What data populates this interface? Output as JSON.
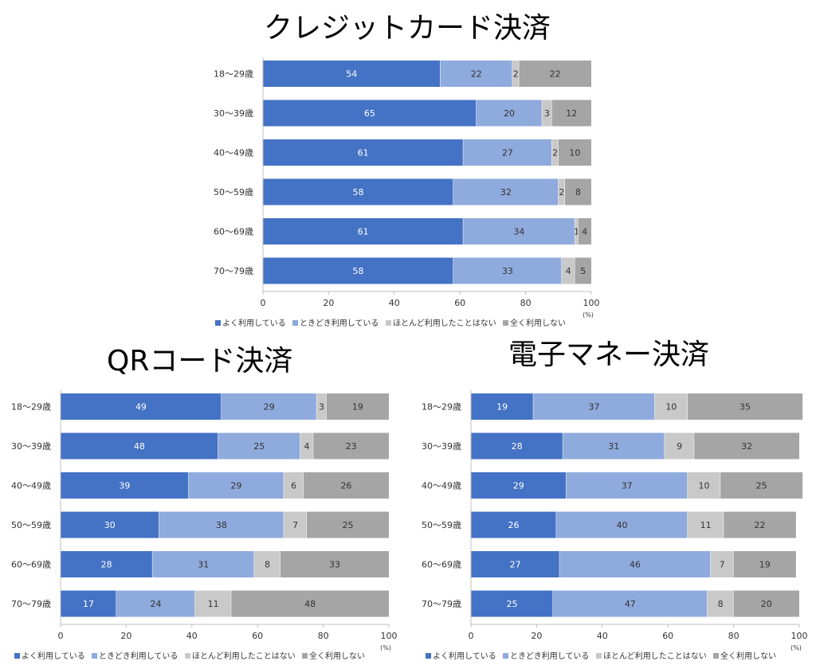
{
  "chart_data": [
    {
      "type": "bar",
      "orientation": "horizontal",
      "stacked": true,
      "title": "クレジットカード決済",
      "categories": [
        "18～29歳",
        "30～39歳",
        "40～49歳",
        "50～59歳",
        "60～69歳",
        "70～79歳"
      ],
      "series": [
        {
          "name": "よく利用している",
          "color": "#4472c4",
          "values": [
            54,
            65,
            61,
            58,
            61,
            58
          ]
        },
        {
          "name": "ときどき利用している",
          "color": "#8faadc",
          "values": [
            22,
            20,
            27,
            32,
            34,
            33
          ]
        },
        {
          "name": "ほとんど利用したことはない",
          "color": "#c9c9c9",
          "values": [
            2,
            3,
            2,
            2,
            1,
            4
          ]
        },
        {
          "name": "全く利用しない",
          "color": "#a5a5a5",
          "values": [
            22,
            12,
            10,
            8,
            4,
            5
          ]
        }
      ],
      "xlim": [
        0,
        100
      ],
      "xticks": [
        0,
        20,
        40,
        60,
        80,
        100
      ],
      "unit": "(%)",
      "legend": "bottom",
      "grid": false
    },
    {
      "type": "bar",
      "orientation": "horizontal",
      "stacked": true,
      "title": "QRコード決済",
      "categories": [
        "18～29歳",
        "30～39歳",
        "40～49歳",
        "50～59歳",
        "60～69歳",
        "70～79歳"
      ],
      "series": [
        {
          "name": "よく利用している",
          "color": "#4472c4",
          "values": [
            49,
            48,
            39,
            30,
            28,
            17
          ]
        },
        {
          "name": "ときどき利用している",
          "color": "#8faadc",
          "values": [
            29,
            25,
            29,
            38,
            31,
            24
          ]
        },
        {
          "name": "ほとんど利用したことはない",
          "color": "#c9c9c9",
          "values": [
            3,
            4,
            6,
            7,
            8,
            11
          ]
        },
        {
          "name": "全く利用しない",
          "color": "#a5a5a5",
          "values": [
            19,
            23,
            26,
            25,
            33,
            48
          ]
        }
      ],
      "xlim": [
        0,
        100
      ],
      "xticks": [
        0,
        20,
        40,
        60,
        80,
        100
      ],
      "unit": "(%)",
      "legend": "bottom",
      "grid": false
    },
    {
      "type": "bar",
      "orientation": "horizontal",
      "stacked": true,
      "title": "電子マネー決済",
      "categories": [
        "18～29歳",
        "30～39歳",
        "40～49歳",
        "50～59歳",
        "60～69歳",
        "70～79歳"
      ],
      "series": [
        {
          "name": "よく利用している",
          "color": "#4472c4",
          "values": [
            19,
            28,
            29,
            26,
            27,
            25
          ]
        },
        {
          "name": "ときどき利用している",
          "color": "#8faadc",
          "values": [
            37,
            31,
            37,
            40,
            46,
            47
          ]
        },
        {
          "name": "ほとんど利用したことはない",
          "color": "#c9c9c9",
          "values": [
            10,
            9,
            10,
            11,
            7,
            8
          ]
        },
        {
          "name": "全く利用しない",
          "color": "#a5a5a5",
          "values": [
            35,
            32,
            25,
            22,
            19,
            20
          ]
        }
      ],
      "xlim": [
        0,
        100
      ],
      "xticks": [
        0,
        20,
        40,
        60,
        80,
        100
      ],
      "unit": "(%)",
      "legend": "bottom",
      "grid": false
    }
  ]
}
